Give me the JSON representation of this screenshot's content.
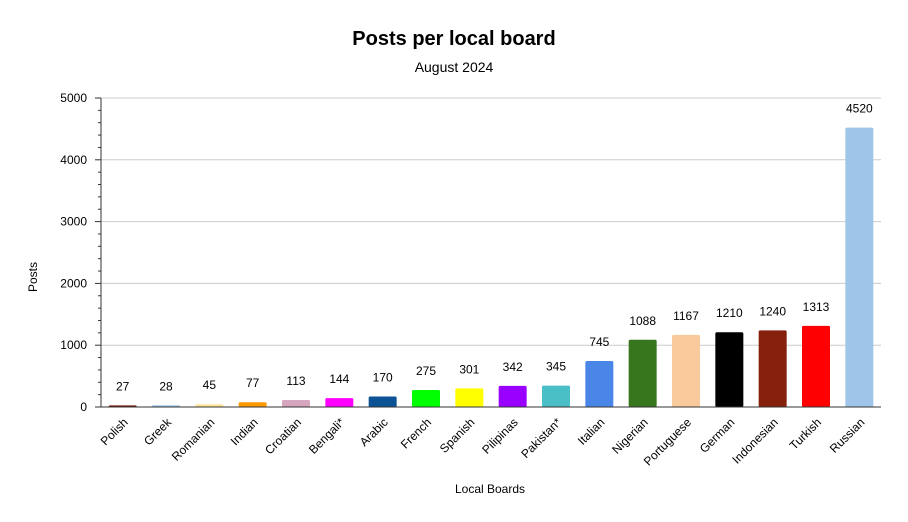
{
  "chart_data": {
    "type": "bar",
    "title": "Posts per local board",
    "subtitle": "August 2024",
    "xlabel": "Local Boards",
    "ylabel": "Posts",
    "ylim": [
      0,
      5000
    ],
    "yticks": [
      0,
      1000,
      2000,
      3000,
      4000,
      5000
    ],
    "grid": true,
    "legend": "none",
    "categories": [
      "Polish",
      "Greek",
      "Romanian",
      "Indian",
      "Croatian",
      "Bengali*",
      "Arabic",
      "French",
      "Spanish",
      "Pilipinas",
      "Pakistan*",
      "Italian",
      "Nigerian",
      "Portuguese",
      "German",
      "Indonesian",
      "Turkish",
      "Russian"
    ],
    "values": [
      27,
      28,
      45,
      77,
      113,
      144,
      170,
      275,
      301,
      342,
      345,
      745,
      1088,
      1167,
      1210,
      1240,
      1313,
      4520
    ],
    "colors": [
      "#7a1a0c",
      "#9fc5e8",
      "#ffe599",
      "#ff9900",
      "#d5a6bd",
      "#ff00ff",
      "#0b5394",
      "#00ff00",
      "#ffff00",
      "#9900ff",
      "#4bbfc6",
      "#4a86e8",
      "#38761d",
      "#f9cb9c",
      "#000000",
      "#85200c",
      "#ff0000",
      "#9fc5e8"
    ]
  }
}
